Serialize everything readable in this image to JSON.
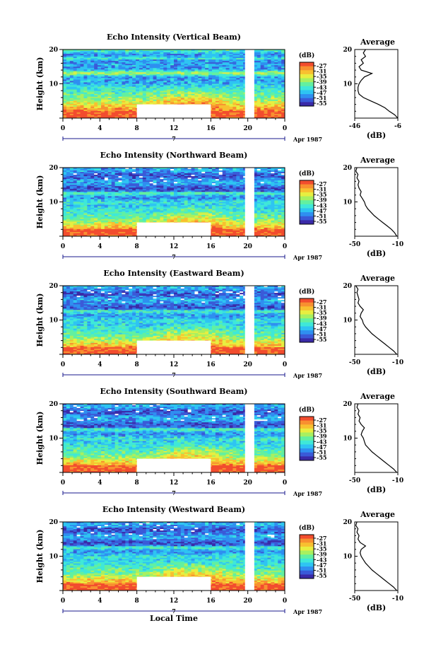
{
  "chart_data": {
    "type": "heatmap",
    "colorbar": {
      "unit": "(dB)",
      "ticks": [
        "-27",
        "-31",
        "-35",
        "-39",
        "-43",
        "-47",
        "-51",
        "-55"
      ],
      "colors": [
        "#3a2aa8",
        "#3a5ad8",
        "#2f8ff0",
        "#2ec4f2",
        "#3fe8d8",
        "#62f0a0",
        "#a8f060",
        "#e8ee40",
        "#f8c030",
        "#f89030",
        "#f24d2e"
      ]
    },
    "x_ticks": [
      "0",
      "4",
      "8",
      "12",
      "16",
      "20",
      "0"
    ],
    "xlim": [
      0,
      24
    ],
    "y_ticks": [
      "20",
      "10"
    ],
    "ylim": [
      0,
      20
    ],
    "ylabel": "Height (km)",
    "xlabel": "Local Time",
    "date_label": "Apr 1987",
    "day_label": "7",
    "profile_title": "Average",
    "profile_xlabel": "(dB)",
    "data_gaps": [
      {
        "x_start": 8,
        "x_end": 16,
        "y_start": 0,
        "y_end": 4
      },
      {
        "x_start": 19.7,
        "x_end": 20.7,
        "y_start": 0,
        "y_end": 20
      }
    ],
    "panels": [
      {
        "title": "Echo Intensity (Vertical Beam)",
        "profile_xticks": [
          "-46",
          "-6"
        ],
        "profile_xlim": [
          -46,
          -6
        ],
        "profile": {
          "height": [
            0,
            1,
            2,
            3,
            4,
            5,
            6,
            7,
            8,
            9,
            10,
            11,
            12,
            13,
            14,
            15,
            16,
            17,
            18,
            19,
            20
          ],
          "value": [
            -6,
            -9,
            -14,
            -18,
            -24,
            -31,
            -38,
            -42,
            -43,
            -43,
            -42,
            -40,
            -37,
            -30,
            -40,
            -42,
            -38,
            -40,
            -36,
            -38,
            -36
          ]
        }
      },
      {
        "title": "Echo Intensity (Northward Beam)",
        "profile_xticks": [
          "-50",
          "-10"
        ],
        "profile_xlim": [
          -50,
          -10
        ],
        "profile": {
          "height": [
            0,
            1,
            2,
            3,
            4,
            5,
            6,
            7,
            8,
            9,
            10,
            11,
            12,
            13,
            14,
            15,
            16,
            17,
            18,
            19,
            20
          ],
          "value": [
            -11,
            -13,
            -16,
            -20,
            -24,
            -28,
            -32,
            -35,
            -38,
            -40,
            -41,
            -43,
            -45,
            -44,
            -46,
            -47,
            -46,
            -48,
            -47,
            -49,
            -48
          ]
        }
      },
      {
        "title": "Echo Intensity (Eastward Beam)",
        "profile_xticks": [
          "-50",
          "-10"
        ],
        "profile_xlim": [
          -50,
          -10
        ],
        "profile": {
          "height": [
            0,
            1,
            2,
            3,
            4,
            5,
            6,
            7,
            8,
            9,
            10,
            11,
            12,
            13,
            14,
            15,
            16,
            17,
            18,
            19,
            20
          ],
          "value": [
            -11,
            -14,
            -18,
            -22,
            -26,
            -30,
            -34,
            -37,
            -40,
            -42,
            -43,
            -45,
            -44,
            -42,
            -45,
            -47,
            -46,
            -47,
            -48,
            -47,
            -49
          ]
        }
      },
      {
        "title": "Echo Intensity (Southward Beam)",
        "profile_xticks": [
          "-50",
          "-10"
        ],
        "profile_xlim": [
          -50,
          -10
        ],
        "profile": {
          "height": [
            0,
            1,
            2,
            3,
            4,
            5,
            6,
            7,
            8,
            9,
            10,
            11,
            12,
            13,
            14,
            15,
            16,
            17,
            18,
            19,
            20
          ],
          "value": [
            -11,
            -14,
            -18,
            -22,
            -26,
            -30,
            -34,
            -37,
            -40,
            -41,
            -42,
            -44,
            -43,
            -41,
            -44,
            -46,
            -45,
            -47,
            -46,
            -48,
            -47
          ]
        }
      },
      {
        "title": "Echo Intensity (Westward Beam)",
        "profile_xticks": [
          "-50",
          "-10"
        ],
        "profile_xlim": [
          -50,
          -10
        ],
        "profile": {
          "height": [
            0,
            1,
            2,
            3,
            4,
            5,
            6,
            7,
            8,
            9,
            10,
            11,
            12,
            13,
            14,
            15,
            16,
            17,
            18,
            19,
            20
          ],
          "value": [
            -11,
            -14,
            -18,
            -22,
            -26,
            -30,
            -34,
            -37,
            -40,
            -42,
            -44,
            -45,
            -44,
            -40,
            -45,
            -47,
            -46,
            -48,
            -47,
            -49,
            -48
          ]
        }
      }
    ]
  }
}
